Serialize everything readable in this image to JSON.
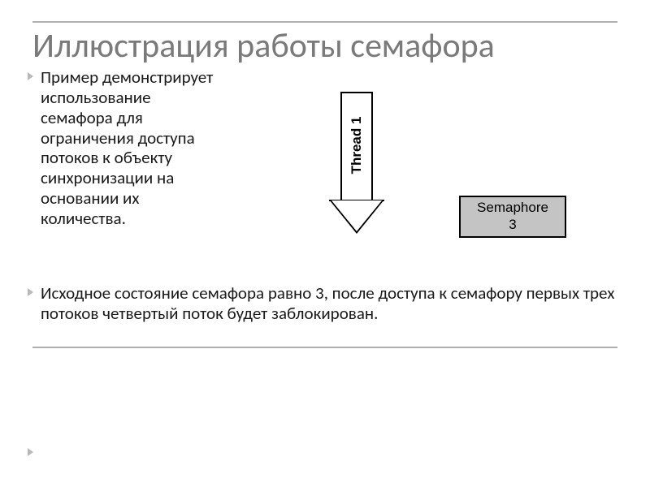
{
  "slide": {
    "title": "Иллюстрация работы семафора",
    "bullet1": "Пример демонстрирует использование семафора для ограничения доступа потоков к объекту синхронизации на основании их количества.",
    "bullet2": "Исходное состояние семафора равно 3, после доступа к семафору первых трех потоков четвертый поток будет заблокирован."
  },
  "diagram": {
    "type": "flowchart",
    "arrow": {
      "label": "Thread 1",
      "shape": "down-arrow",
      "fill": "#ffffff",
      "stroke": "#000000",
      "stroke_width": 2,
      "label_fontsize": 17,
      "label_fontweight": 700,
      "label_rotation_deg": -90
    },
    "semaphore_box": {
      "line1": "Semaphore",
      "line2": "3",
      "fill": "#c4c4c4",
      "stroke": "#000000",
      "stroke_width": 2,
      "fontsize": 17
    }
  },
  "style": {
    "title_color": "#7a7a7a",
    "title_fontsize": 42,
    "body_fontsize": 21,
    "rule_color": "#b0b0b0",
    "bullet_marker_color": "#b8b8b8",
    "background": "#ffffff"
  }
}
